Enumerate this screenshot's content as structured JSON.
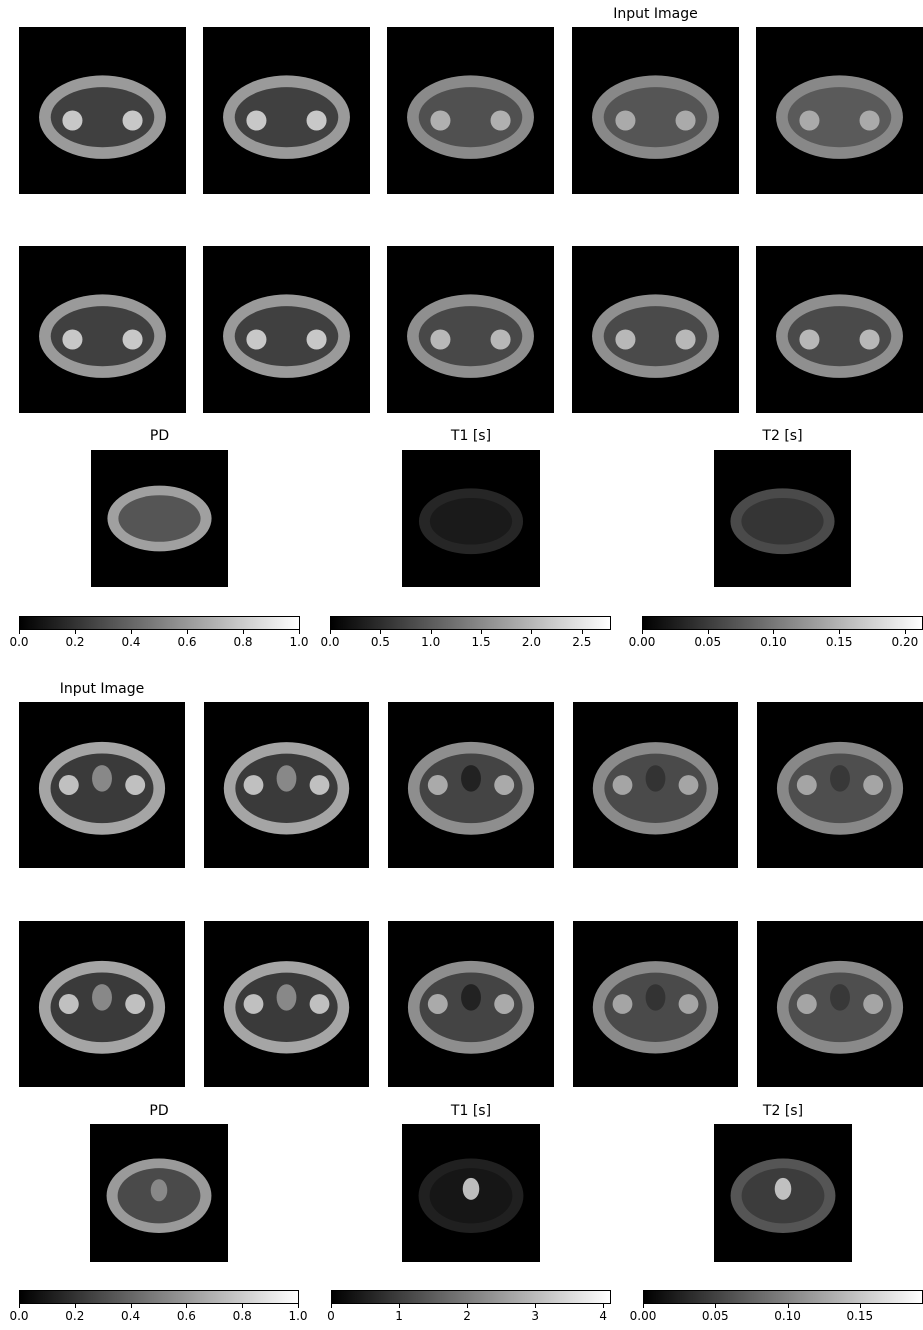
{
  "figures": [
    {
      "header_label": "Input Image",
      "maps": [
        {
          "title": "PD",
          "ticks": [
            "0.0",
            "0.2",
            "0.4",
            "0.6",
            "0.8",
            "1.0"
          ],
          "min": 0,
          "max": 1.0
        },
        {
          "title": "T1 [s]",
          "ticks": [
            "0.0",
            "0.5",
            "1.0",
            "1.5",
            "2.0",
            "2.5"
          ],
          "min": 0,
          "max": 2.78
        },
        {
          "title": "T2 [s]",
          "ticks": [
            "0.00",
            "0.05",
            "0.10",
            "0.15",
            "0.20"
          ],
          "min": 0,
          "max": 0.213
        }
      ]
    },
    {
      "header_label": "Input Image",
      "maps": [
        {
          "title": "PD",
          "ticks": [
            "0.0",
            "0.2",
            "0.4",
            "0.6",
            "0.8",
            "1.0"
          ],
          "min": 0,
          "max": 1.0
        },
        {
          "title": "T1 [s]",
          "ticks": [
            "0",
            "1",
            "2",
            "3",
            "4"
          ],
          "min": 0,
          "max": 4.1
        },
        {
          "title": "T2 [s]",
          "ticks": [
            "0.00",
            "0.05",
            "0.10",
            "0.15"
          ],
          "min": 0,
          "max": 0.193
        }
      ]
    }
  ],
  "colors": {
    "background": "#ffffff",
    "image_bg": "#000000",
    "colormap": [
      "#000000",
      "#ffffff"
    ]
  }
}
